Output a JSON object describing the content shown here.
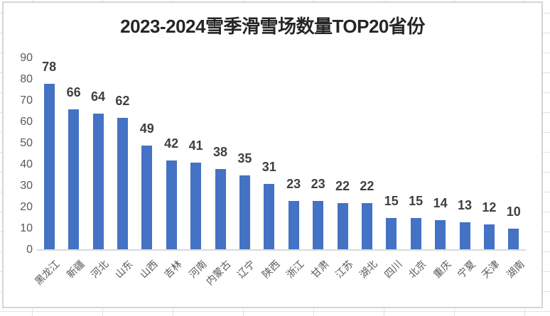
{
  "chart_data": {
    "type": "bar",
    "title": "2023-2024雪季滑雪场数量TOP20省份",
    "categories": [
      "黑龙江",
      "新疆",
      "河北",
      "山东",
      "山西",
      "吉林",
      "河南",
      "内蒙古",
      "辽宁",
      "陕西",
      "浙江",
      "甘肃",
      "江苏",
      "湖北",
      "四川",
      "北京",
      "重庆",
      "宁夏",
      "天津",
      "湖南"
    ],
    "values": [
      78,
      66,
      64,
      62,
      49,
      42,
      41,
      38,
      35,
      31,
      23,
      23,
      22,
      22,
      15,
      15,
      14,
      13,
      12,
      10
    ],
    "data_labels_visible": true,
    "xlabel": "",
    "ylabel": "",
    "ylim": [
      0,
      90
    ],
    "yticks": [
      0,
      10,
      20,
      30,
      40,
      50,
      60,
      70,
      80,
      90
    ],
    "grid": false,
    "legend": false,
    "x_label_rotation_deg": 45,
    "colors": {
      "bar_fill": "#4472C4",
      "value_label": "#3f3f3f",
      "axis_text": "#595959",
      "axis_line": "#d9d9d9",
      "title_text": "#262626",
      "chart_border": "#d5d5d5",
      "sheet_gridline": "#e2e2e2"
    }
  }
}
